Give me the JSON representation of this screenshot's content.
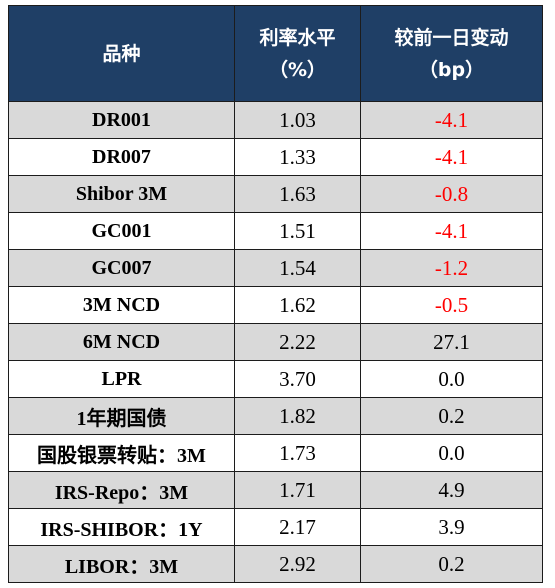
{
  "table": {
    "headers": {
      "product": "品种",
      "rate_line1": "利率水平",
      "rate_line2": "（%）",
      "change_line1": "较前一日变动",
      "change_line2": "（bp）"
    },
    "rows": [
      {
        "name": "DR001",
        "rate": "1.03",
        "change": "-4.1",
        "negative": true,
        "shaded": true
      },
      {
        "name": "DR007",
        "rate": "1.33",
        "change": "-4.1",
        "negative": true,
        "shaded": false
      },
      {
        "name": "Shibor 3M",
        "rate": "1.63",
        "change": "-0.8",
        "negative": true,
        "shaded": true
      },
      {
        "name": "GC001",
        "rate": "1.51",
        "change": "-4.1",
        "negative": true,
        "shaded": false
      },
      {
        "name": "GC007",
        "rate": "1.54",
        "change": "-1.2",
        "negative": true,
        "shaded": true
      },
      {
        "name": "3M NCD",
        "rate": "1.62",
        "change": "-0.5",
        "negative": true,
        "shaded": false
      },
      {
        "name": "6M NCD",
        "rate": "2.22",
        "change": "27.1",
        "negative": false,
        "shaded": true
      },
      {
        "name": "LPR",
        "rate": "3.70",
        "change": "0.0",
        "negative": false,
        "shaded": false
      },
      {
        "name": "1年期国债",
        "rate": "1.82",
        "change": "0.2",
        "negative": false,
        "shaded": true
      },
      {
        "name": "国股银票转贴：3M",
        "rate": "1.73",
        "change": "0.0",
        "negative": false,
        "shaded": false
      },
      {
        "name": "IRS-Repo：3M",
        "rate": "1.71",
        "change": "4.9",
        "negative": false,
        "shaded": true
      },
      {
        "name": "IRS-SHIBOR：1Y",
        "rate": "2.17",
        "change": "3.9",
        "negative": false,
        "shaded": false
      },
      {
        "name": "LIBOR：3M",
        "rate": "2.92",
        "change": "0.2",
        "negative": false,
        "shaded": true
      }
    ],
    "colors": {
      "header_bg": "#1f3f66",
      "header_text": "#ffffff",
      "shade_bg": "#d9d9d9",
      "negative_text": "#ff0000"
    }
  }
}
